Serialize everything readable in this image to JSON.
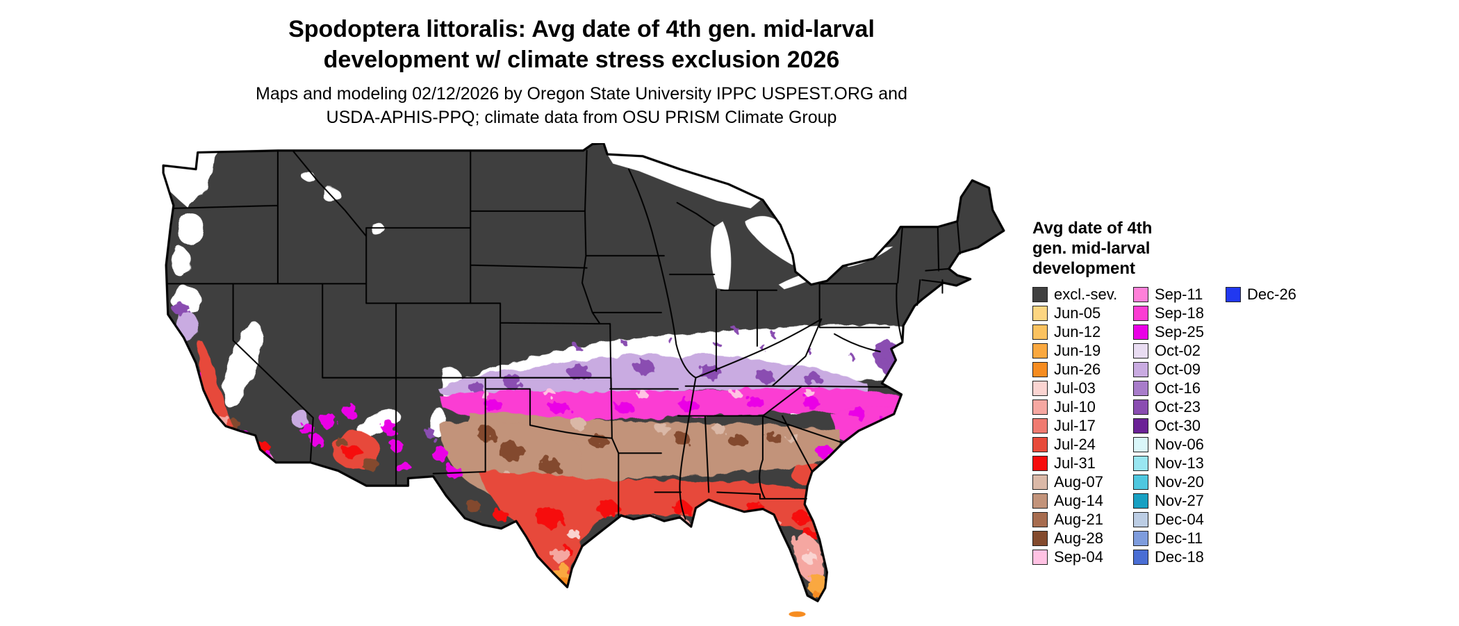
{
  "title": {
    "line1": "Spodoptera littoralis: Avg date of 4th gen. mid-larval",
    "line2": "development w/ climate stress exclusion 2026"
  },
  "subtitle": {
    "line1": "Maps and modeling 02/12/2026 by Oregon State University IPPC USPEST.ORG and",
    "line2": "USDA-APHIS-PPQ; climate data from OSU PRISM Climate Group"
  },
  "legend": {
    "title_lines": [
      "Avg date of 4th",
      "gen. mid-larval",
      "development"
    ],
    "columns": [
      [
        {
          "label": "excl.-sev.",
          "color": "#3f3f3f"
        },
        {
          "label": "Jun-05",
          "color": "#fcd581"
        },
        {
          "label": "Jun-12",
          "color": "#fbc25f"
        },
        {
          "label": "Jun-19",
          "color": "#faa83f"
        },
        {
          "label": "Jun-26",
          "color": "#f68c20"
        },
        {
          "label": "Jul-03",
          "color": "#fad4d1"
        },
        {
          "label": "Jul-10",
          "color": "#f5a7a1"
        },
        {
          "label": "Jul-17",
          "color": "#ef7a70"
        },
        {
          "label": "Jul-24",
          "color": "#e74a3a"
        },
        {
          "label": "Jul-31",
          "color": "#f60c0c"
        },
        {
          "label": "Aug-07",
          "color": "#dab8a7"
        },
        {
          "label": "Aug-14",
          "color": "#c2937a"
        },
        {
          "label": "Aug-21",
          "color": "#a76c4f"
        },
        {
          "label": "Aug-28",
          "color": "#834a2d"
        },
        {
          "label": "Sep-04",
          "color": "#ffc2e3"
        }
      ],
      [
        {
          "label": "Sep-11",
          "color": "#ff80d9"
        },
        {
          "label": "Sep-18",
          "color": "#fb3cd3"
        },
        {
          "label": "Sep-25",
          "color": "#ea00e6"
        },
        {
          "label": "Oct-02",
          "color": "#e9dcf2"
        },
        {
          "label": "Oct-09",
          "color": "#c9abe1"
        },
        {
          "label": "Oct-16",
          "color": "#a87cca"
        },
        {
          "label": "Oct-23",
          "color": "#8a4db1"
        },
        {
          "label": "Oct-30",
          "color": "#6b2196"
        },
        {
          "label": "Nov-06",
          "color": "#daf7fa"
        },
        {
          "label": "Nov-13",
          "color": "#99e6f1"
        },
        {
          "label": "Nov-20",
          "color": "#4fc7df"
        },
        {
          "label": "Nov-27",
          "color": "#18a0c2"
        },
        {
          "label": "Dec-04",
          "color": "#bccde4"
        },
        {
          "label": "Dec-11",
          "color": "#7e9cdd"
        },
        {
          "label": "Dec-18",
          "color": "#4a6ed4"
        }
      ],
      [
        {
          "label": "Dec-26",
          "color": "#2138f0"
        }
      ]
    ]
  },
  "map": {
    "colors": {
      "excl": "#3f3f3f",
      "white": "#ffffff",
      "border": "#000000",
      "oct09": "#c9abe1",
      "oct23": "#8a4db1",
      "sep04": "#ffc2e3",
      "sep11": "#ff80d9",
      "sep18": "#fb3cd3",
      "sep25": "#ea00e6",
      "aug07": "#dab8a7",
      "aug14": "#c2937a",
      "aug28": "#834a2d",
      "jul03": "#fad4d1",
      "jul10": "#f5a7a1",
      "jul24": "#e74a3a",
      "jul31": "#f60c0c",
      "jun19": "#faa83f",
      "jun26": "#f68c20"
    }
  }
}
